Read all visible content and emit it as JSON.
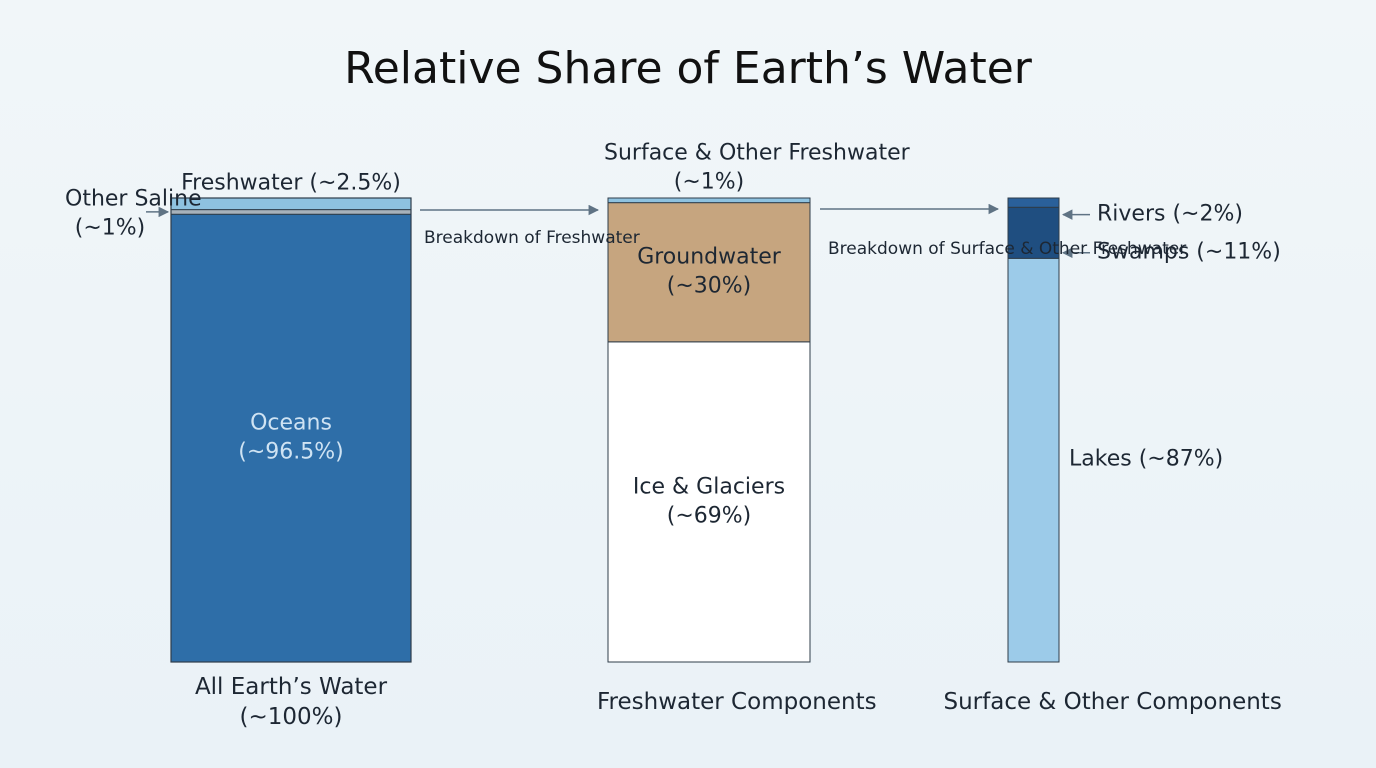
{
  "chart_data": {
    "type": "stacked_bar",
    "title": "Relative Share of Earth’s Water",
    "ylim": [
      0,
      100
    ],
    "bars": [
      {
        "label": "All Earth’s Water",
        "total": 100,
        "total_label": "(~100%)",
        "segments": [
          {
            "name": "Oceans",
            "value": 96.5,
            "value_label": "(~96.5%)",
            "color": "#2e6ea8"
          },
          {
            "name": "Other Saline",
            "value": 1,
            "value_label": "(~1%)",
            "color": "#a7b2bb"
          },
          {
            "name": "Freshwater",
            "value": 2.5,
            "value_label": "(~2.5%)",
            "color": "#8ec2e0"
          }
        ]
      },
      {
        "label": "Freshwater Components",
        "segments": [
          {
            "name": "Ice & Glaciers",
            "value": 69,
            "value_label": "(~69%)",
            "color": "#ffffff"
          },
          {
            "name": "Groundwater",
            "value": 30,
            "value_label": "(~30%)",
            "color": "#c6a57f"
          },
          {
            "name": "Surface & Other Freshwater",
            "value": 1,
            "value_label": "(~1%)",
            "color": "#8ec2e0"
          }
        ]
      },
      {
        "label": "Surface & Other Components",
        "segments": [
          {
            "name": "Lakes",
            "value": 87,
            "value_label": "(~87%)",
            "color": "#9ccbe9"
          },
          {
            "name": "Swamps",
            "value": 11,
            "value_label": "(~11%)",
            "color": "#1f4e80"
          },
          {
            "name": "Rivers",
            "value": 2,
            "value_label": "(~2%)",
            "color": "#2a609a"
          }
        ]
      }
    ],
    "annotations": [
      "Breakdown of Freshwater",
      "Breakdown of Surface & Other Freshwater"
    ]
  }
}
